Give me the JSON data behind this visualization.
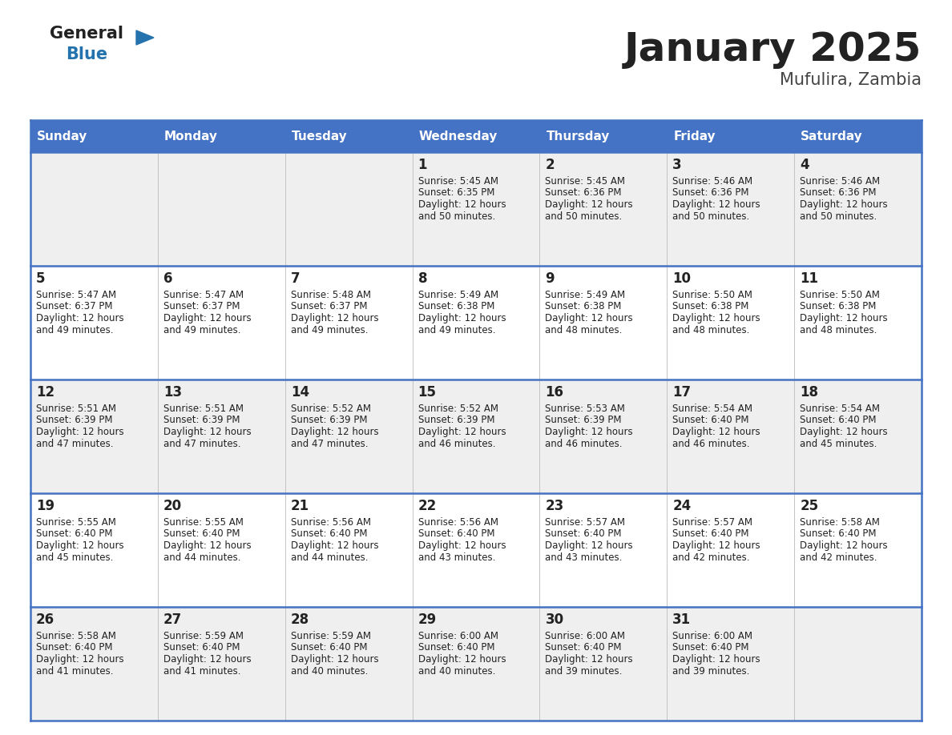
{
  "title": "January 2025",
  "subtitle": "Mufulira, Zambia",
  "days_of_week": [
    "Sunday",
    "Monday",
    "Tuesday",
    "Wednesday",
    "Thursday",
    "Friday",
    "Saturday"
  ],
  "header_bg": "#4472C4",
  "header_text": "#FFFFFF",
  "cell_bg_odd": "#EFEFEF",
  "cell_bg_even": "#FFFFFF",
  "border_color": "#4472C4",
  "title_color": "#222222",
  "subtitle_color": "#444444",
  "text_color": "#222222",
  "line_color": "#4472C4",
  "calendar_data": [
    [
      null,
      null,
      null,
      {
        "day": 1,
        "sunrise": "5:45 AM",
        "sunset": "6:35 PM",
        "daylight_hours": 12,
        "daylight_minutes": 50
      },
      {
        "day": 2,
        "sunrise": "5:45 AM",
        "sunset": "6:36 PM",
        "daylight_hours": 12,
        "daylight_minutes": 50
      },
      {
        "day": 3,
        "sunrise": "5:46 AM",
        "sunset": "6:36 PM",
        "daylight_hours": 12,
        "daylight_minutes": 50
      },
      {
        "day": 4,
        "sunrise": "5:46 AM",
        "sunset": "6:36 PM",
        "daylight_hours": 12,
        "daylight_minutes": 50
      }
    ],
    [
      {
        "day": 5,
        "sunrise": "5:47 AM",
        "sunset": "6:37 PM",
        "daylight_hours": 12,
        "daylight_minutes": 49
      },
      {
        "day": 6,
        "sunrise": "5:47 AM",
        "sunset": "6:37 PM",
        "daylight_hours": 12,
        "daylight_minutes": 49
      },
      {
        "day": 7,
        "sunrise": "5:48 AM",
        "sunset": "6:37 PM",
        "daylight_hours": 12,
        "daylight_minutes": 49
      },
      {
        "day": 8,
        "sunrise": "5:49 AM",
        "sunset": "6:38 PM",
        "daylight_hours": 12,
        "daylight_minutes": 49
      },
      {
        "day": 9,
        "sunrise": "5:49 AM",
        "sunset": "6:38 PM",
        "daylight_hours": 12,
        "daylight_minutes": 48
      },
      {
        "day": 10,
        "sunrise": "5:50 AM",
        "sunset": "6:38 PM",
        "daylight_hours": 12,
        "daylight_minutes": 48
      },
      {
        "day": 11,
        "sunrise": "5:50 AM",
        "sunset": "6:38 PM",
        "daylight_hours": 12,
        "daylight_minutes": 48
      }
    ],
    [
      {
        "day": 12,
        "sunrise": "5:51 AM",
        "sunset": "6:39 PM",
        "daylight_hours": 12,
        "daylight_minutes": 47
      },
      {
        "day": 13,
        "sunrise": "5:51 AM",
        "sunset": "6:39 PM",
        "daylight_hours": 12,
        "daylight_minutes": 47
      },
      {
        "day": 14,
        "sunrise": "5:52 AM",
        "sunset": "6:39 PM",
        "daylight_hours": 12,
        "daylight_minutes": 47
      },
      {
        "day": 15,
        "sunrise": "5:52 AM",
        "sunset": "6:39 PM",
        "daylight_hours": 12,
        "daylight_minutes": 46
      },
      {
        "day": 16,
        "sunrise": "5:53 AM",
        "sunset": "6:39 PM",
        "daylight_hours": 12,
        "daylight_minutes": 46
      },
      {
        "day": 17,
        "sunrise": "5:54 AM",
        "sunset": "6:40 PM",
        "daylight_hours": 12,
        "daylight_minutes": 46
      },
      {
        "day": 18,
        "sunrise": "5:54 AM",
        "sunset": "6:40 PM",
        "daylight_hours": 12,
        "daylight_minutes": 45
      }
    ],
    [
      {
        "day": 19,
        "sunrise": "5:55 AM",
        "sunset": "6:40 PM",
        "daylight_hours": 12,
        "daylight_minutes": 45
      },
      {
        "day": 20,
        "sunrise": "5:55 AM",
        "sunset": "6:40 PM",
        "daylight_hours": 12,
        "daylight_minutes": 44
      },
      {
        "day": 21,
        "sunrise": "5:56 AM",
        "sunset": "6:40 PM",
        "daylight_hours": 12,
        "daylight_minutes": 44
      },
      {
        "day": 22,
        "sunrise": "5:56 AM",
        "sunset": "6:40 PM",
        "daylight_hours": 12,
        "daylight_minutes": 43
      },
      {
        "day": 23,
        "sunrise": "5:57 AM",
        "sunset": "6:40 PM",
        "daylight_hours": 12,
        "daylight_minutes": 43
      },
      {
        "day": 24,
        "sunrise": "5:57 AM",
        "sunset": "6:40 PM",
        "daylight_hours": 12,
        "daylight_minutes": 42
      },
      {
        "day": 25,
        "sunrise": "5:58 AM",
        "sunset": "6:40 PM",
        "daylight_hours": 12,
        "daylight_minutes": 42
      }
    ],
    [
      {
        "day": 26,
        "sunrise": "5:58 AM",
        "sunset": "6:40 PM",
        "daylight_hours": 12,
        "daylight_minutes": 41
      },
      {
        "day": 27,
        "sunrise": "5:59 AM",
        "sunset": "6:40 PM",
        "daylight_hours": 12,
        "daylight_minutes": 41
      },
      {
        "day": 28,
        "sunrise": "5:59 AM",
        "sunset": "6:40 PM",
        "daylight_hours": 12,
        "daylight_minutes": 40
      },
      {
        "day": 29,
        "sunrise": "6:00 AM",
        "sunset": "6:40 PM",
        "daylight_hours": 12,
        "daylight_minutes": 40
      },
      {
        "day": 30,
        "sunrise": "6:00 AM",
        "sunset": "6:40 PM",
        "daylight_hours": 12,
        "daylight_minutes": 39
      },
      {
        "day": 31,
        "sunrise": "6:00 AM",
        "sunset": "6:40 PM",
        "daylight_hours": 12,
        "daylight_minutes": 39
      },
      null
    ]
  ],
  "logo_general_color": "#222222",
  "logo_blue_color": "#2473AE",
  "logo_triangle_color": "#2473AE"
}
